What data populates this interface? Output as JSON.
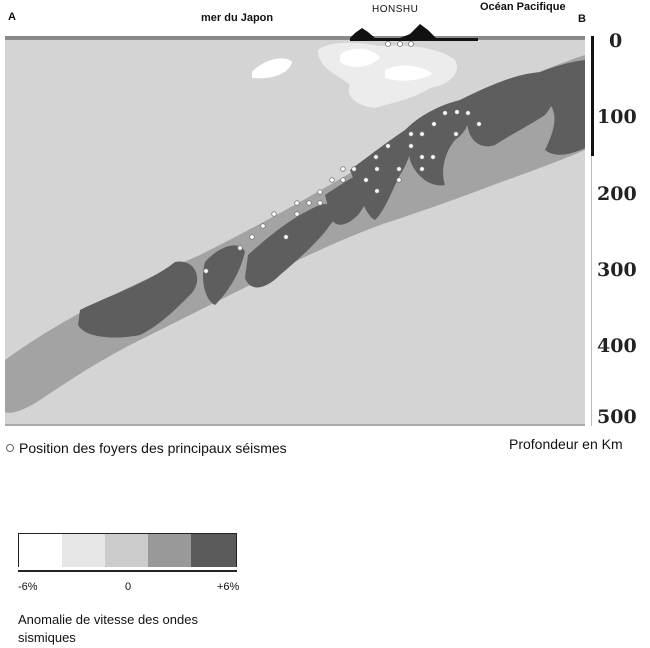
{
  "header": {
    "point_a": "A",
    "point_b": "B",
    "sea_japan": "mer du Japon",
    "honshu": "HONSHU",
    "pacific": "Océan  Pacifique"
  },
  "depth_axis": {
    "unit_label": "Profondeur en Km",
    "ticks": [
      "0",
      "100",
      "200",
      "300",
      "400",
      "500"
    ]
  },
  "legend": {
    "foci_label": "Position des foyers des principaux séismes",
    "scale_title": "Anomalie de vitesse des ondes sismiques",
    "scale_ticks": [
      "-6%",
      "0",
      "+6%"
    ],
    "colors": [
      "#ffffff",
      "#e6e6e6",
      "#cccccc",
      "#999999",
      "#5a5a5a"
    ]
  },
  "colors": {
    "background_mantle": "#d4d4d4",
    "slab_mid": "#a3a3a3",
    "slab_dark": "#5e5e5e",
    "crust_light": "#ececec",
    "focus_marker": "#ffffff"
  }
}
